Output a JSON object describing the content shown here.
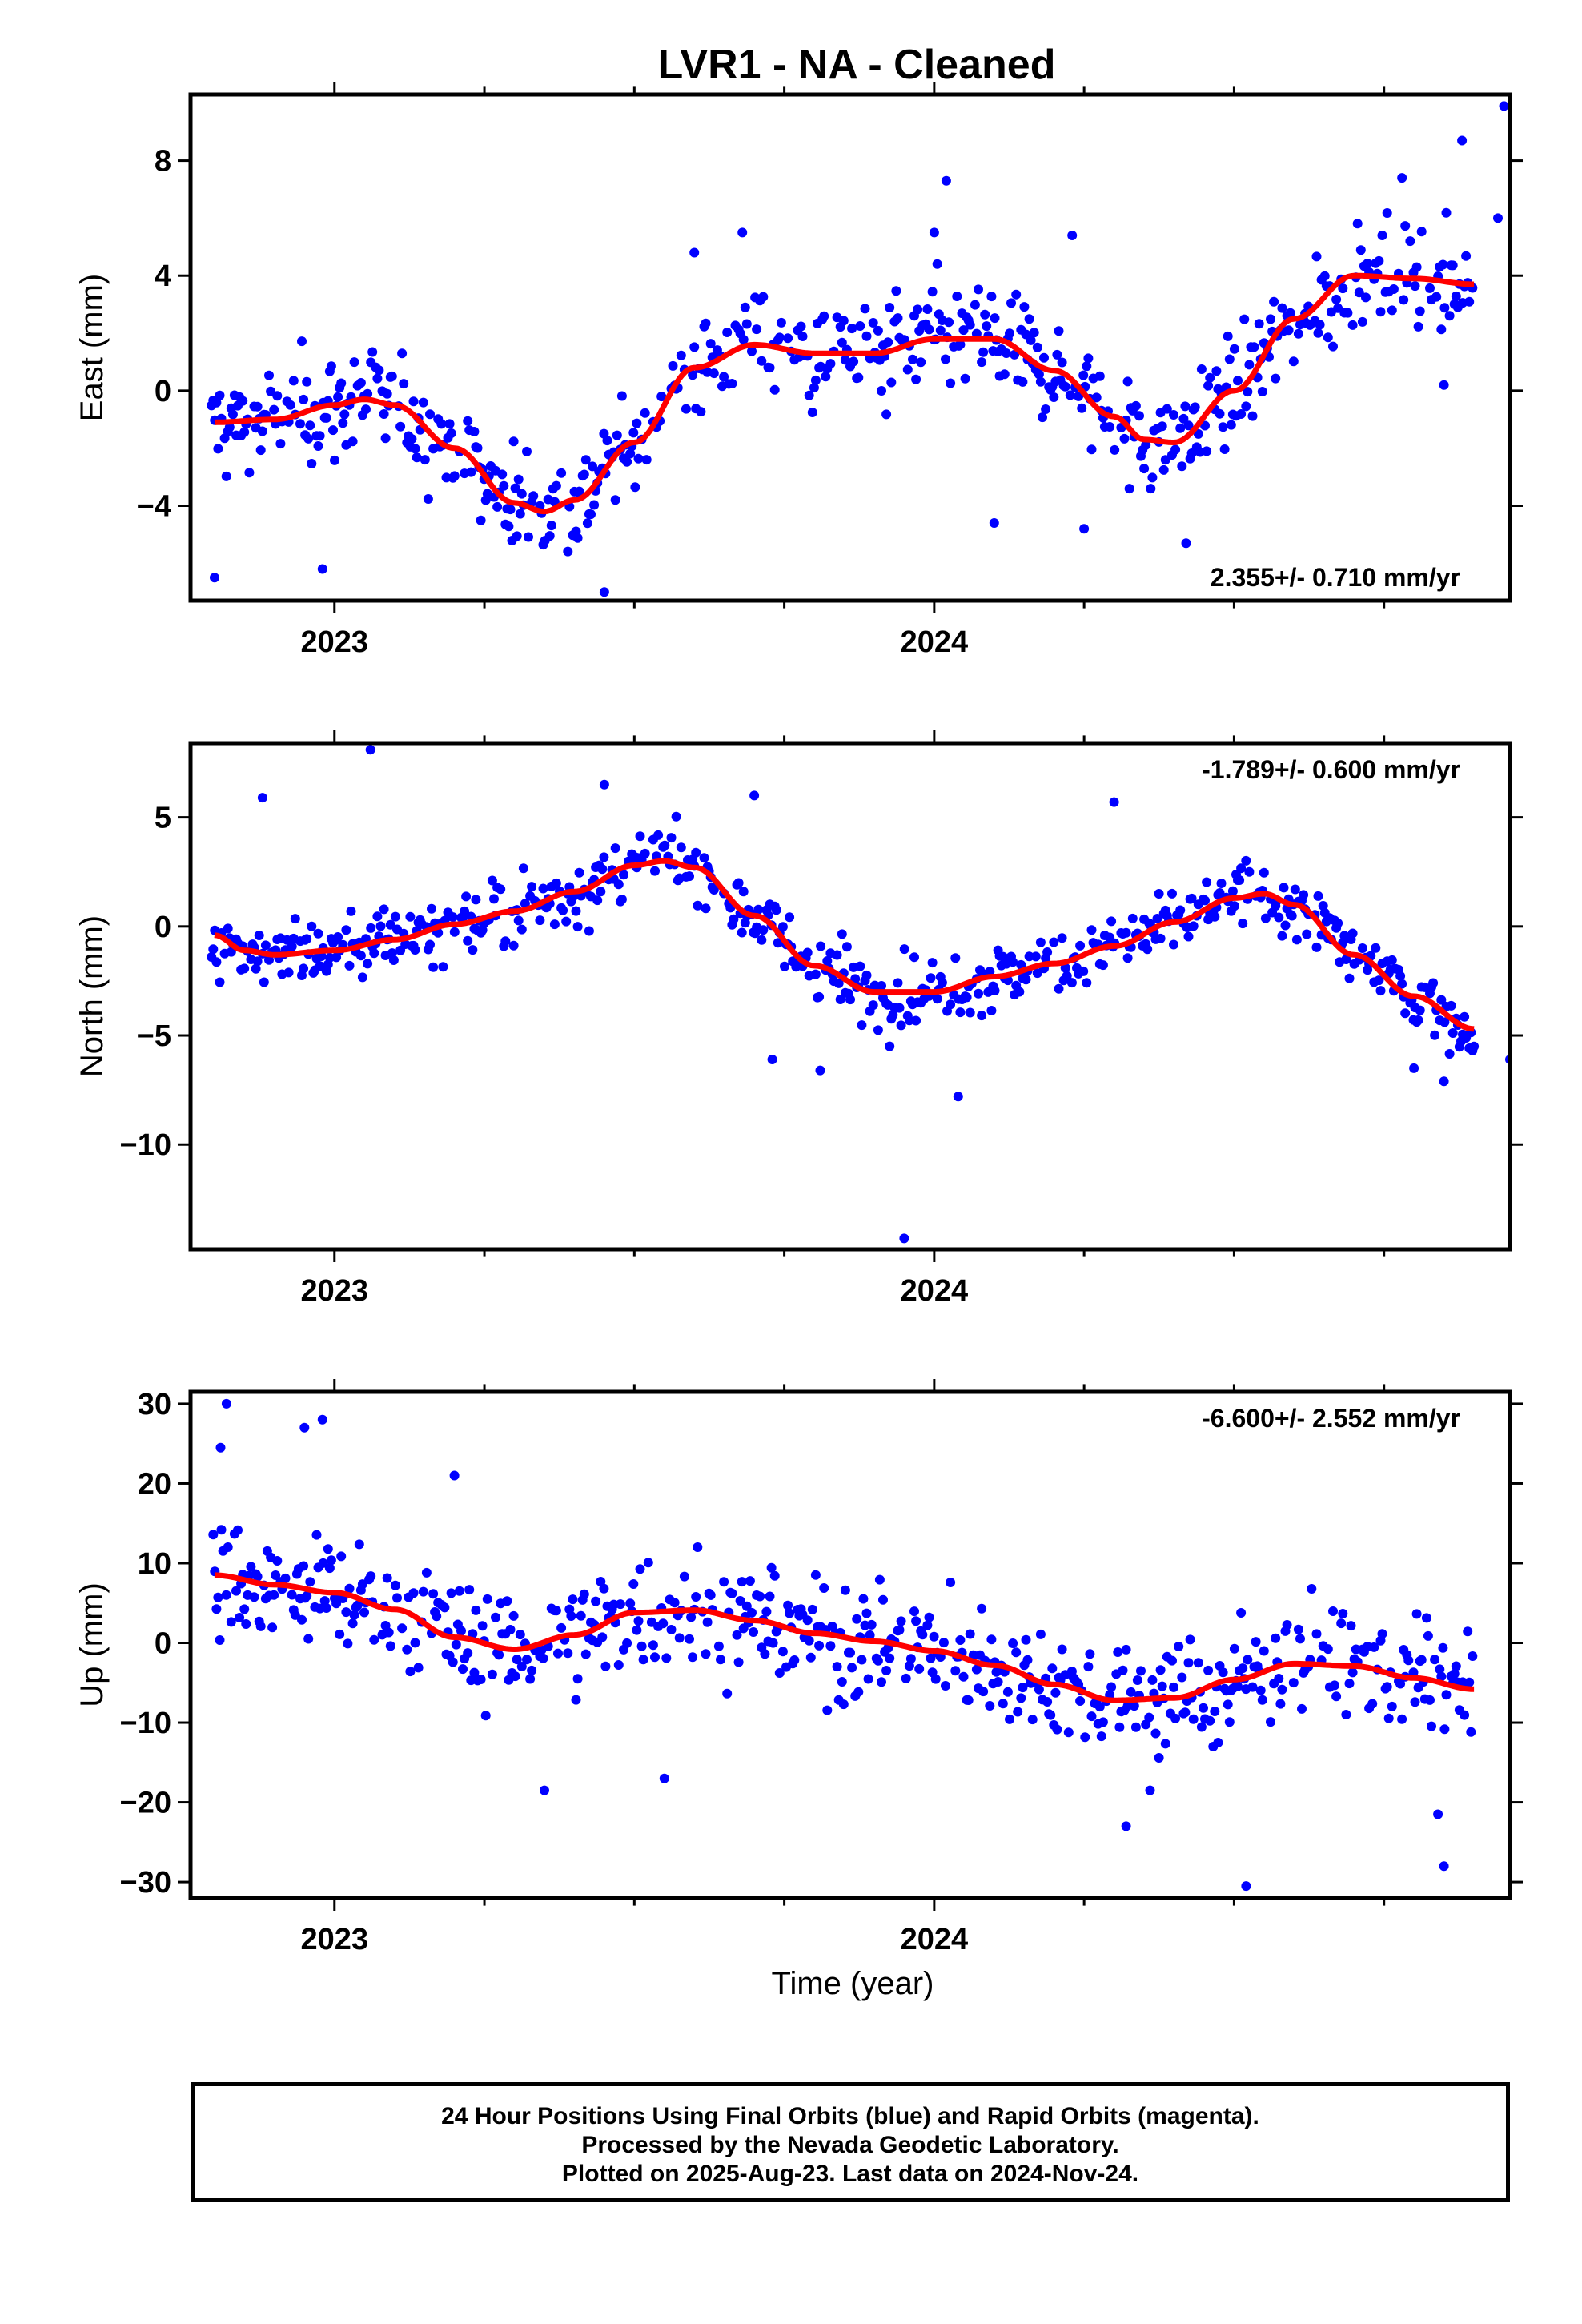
{
  "chart_data": {
    "type": "scatter",
    "title": "LVR1  - NA - Cleaned",
    "xlabel": "Time (year)",
    "xlim": [
      2022.76,
      2024.96
    ],
    "x_ticks": [
      2023,
      2024
    ],
    "x_tick_labels": [
      "2023",
      "2024"
    ],
    "x_minor_tick_step": 0.25,
    "data_point_color": "#0000ff",
    "fit_line_color": "#ff0000",
    "grid": false,
    "panels": [
      {
        "component": "east",
        "ylabel": "East (mm)",
        "ylim": [
          -7.3,
          10.3
        ],
        "y_ticks": [
          -4,
          0,
          4,
          8
        ],
        "y_tick_labels": [
          "−4",
          "0",
          "4",
          "8"
        ],
        "rate_label": "2.355+/- 0.710 mm/yr",
        "rate_label_position": "bottom-right",
        "trend_line": {
          "x": [
            2022.8,
            2022.9,
            2023.0,
            2023.05,
            2023.1,
            2023.2,
            2023.3,
            2023.35,
            2023.4,
            2023.5,
            2023.6,
            2023.7,
            2023.8,
            2023.9,
            2024.0,
            2024.1,
            2024.2,
            2024.3,
            2024.35,
            2024.4,
            2024.5,
            2024.6,
            2024.7,
            2024.8,
            2024.9
          ],
          "y": [
            -1.1,
            -1.0,
            -0.5,
            -0.3,
            -0.5,
            -2.0,
            -3.9,
            -4.2,
            -3.8,
            -1.8,
            0.8,
            1.6,
            1.3,
            1.3,
            1.8,
            1.8,
            0.7,
            -0.9,
            -1.7,
            -1.8,
            0.0,
            2.5,
            4.0,
            3.9,
            3.7
          ]
        },
        "scatter": {
          "type": "residual",
          "series": "final_orbits",
          "amplitude": 1.5,
          "step_days": 1,
          "outliers": [
            {
              "x": 2022.8,
              "y": -6.5
            },
            {
              "x": 2022.98,
              "y": -6.2
            },
            {
              "x": 2023.45,
              "y": -7.0
            },
            {
              "x": 2023.6,
              "y": 4.8
            },
            {
              "x": 2023.68,
              "y": 5.5
            },
            {
              "x": 2024.0,
              "y": 5.5
            },
            {
              "x": 2024.02,
              "y": 7.3
            },
            {
              "x": 2024.1,
              "y": -4.6
            },
            {
              "x": 2024.23,
              "y": 5.4
            },
            {
              "x": 2024.25,
              "y": -4.8
            },
            {
              "x": 2024.42,
              "y": -5.3
            },
            {
              "x": 2024.78,
              "y": 7.4
            },
            {
              "x": 2024.85,
              "y": 0.2
            },
            {
              "x": 2024.88,
              "y": 8.7
            },
            {
              "x": 2024.94,
              "y": 6.0
            },
            {
              "x": 2024.95,
              "y": 9.9
            }
          ]
        }
      },
      {
        "component": "north",
        "ylabel": "North (mm)",
        "ylim": [
          -14.8,
          8.4
        ],
        "y_ticks": [
          -10,
          -5,
          0,
          5
        ],
        "y_tick_labels": [
          "−10",
          "−5",
          "0",
          "5"
        ],
        "rate_label": "-1.789+/- 0.600 mm/yr",
        "rate_label_position": "top-right",
        "trend_line": {
          "x": [
            2022.8,
            2022.85,
            2022.9,
            2023.0,
            2023.1,
            2023.2,
            2023.3,
            2023.4,
            2023.5,
            2023.55,
            2023.6,
            2023.7,
            2023.8,
            2023.9,
            2024.0,
            2024.1,
            2024.2,
            2024.3,
            2024.4,
            2024.5,
            2024.55,
            2024.6,
            2024.7,
            2024.8,
            2024.9
          ],
          "y": [
            -0.4,
            -1.1,
            -1.3,
            -1.1,
            -0.6,
            0.1,
            0.7,
            1.6,
            2.8,
            3.0,
            2.7,
            0.5,
            -1.8,
            -3.0,
            -3.0,
            -2.3,
            -1.7,
            -0.9,
            0.2,
            1.3,
            1.5,
            1.0,
            -1.3,
            -3.2,
            -4.7
          ]
        },
        "scatter": {
          "type": "residual",
          "series": "final_orbits",
          "amplitude": 1.3,
          "step_days": 1,
          "outliers": [
            {
              "x": 2022.88,
              "y": 5.9
            },
            {
              "x": 2023.06,
              "y": 8.1
            },
            {
              "x": 2023.45,
              "y": 6.5
            },
            {
              "x": 2023.7,
              "y": 6.0
            },
            {
              "x": 2023.73,
              "y": -6.1
            },
            {
              "x": 2023.81,
              "y": -6.6
            },
            {
              "x": 2023.95,
              "y": -14.3
            },
            {
              "x": 2024.04,
              "y": -7.8
            },
            {
              "x": 2024.3,
              "y": 5.7
            },
            {
              "x": 2024.8,
              "y": -6.5
            },
            {
              "x": 2024.85,
              "y": -7.1
            },
            {
              "x": 2024.9,
              "y": -5.5
            },
            {
              "x": 2024.96,
              "y": -6.1
            }
          ]
        }
      },
      {
        "component": "up",
        "ylabel": "Up (mm)",
        "ylim": [
          -32,
          31.5
        ],
        "y_ticks": [
          -30,
          -20,
          -10,
          0,
          10,
          20,
          30
        ],
        "y_tick_labels": [
          "−30",
          "−20",
          "−10",
          "0",
          "10",
          "20",
          "30"
        ],
        "rate_label": "-6.600+/- 2.552 mm/yr",
        "rate_label_position": "top-right",
        "trend_line": {
          "x": [
            2022.8,
            2022.9,
            2023.0,
            2023.1,
            2023.2,
            2023.3,
            2023.4,
            2023.5,
            2023.6,
            2023.7,
            2023.8,
            2023.9,
            2024.0,
            2024.1,
            2024.2,
            2024.3,
            2024.4,
            2024.5,
            2024.6,
            2024.7,
            2024.8,
            2024.9
          ],
          "y": [
            8.5,
            7.3,
            6.3,
            4.2,
            0.7,
            -0.8,
            1.0,
            3.8,
            4.1,
            2.8,
            1.2,
            0.2,
            -1.0,
            -2.8,
            -5.2,
            -7.2,
            -6.9,
            -4.6,
            -2.6,
            -2.9,
            -4.4,
            -5.8
          ]
        },
        "scatter": {
          "type": "residual",
          "series": "final_orbits",
          "amplitude": 6,
          "step_days": 1,
          "outliers": [
            {
              "x": 2022.82,
              "y": 30.0
            },
            {
              "x": 2022.81,
              "y": 24.5
            },
            {
              "x": 2022.95,
              "y": 27.0
            },
            {
              "x": 2022.98,
              "y": 28.0
            },
            {
              "x": 2023.2,
              "y": 21.0
            },
            {
              "x": 2023.35,
              "y": -18.5
            },
            {
              "x": 2023.55,
              "y": -17.0
            },
            {
              "x": 2024.32,
              "y": -23.0
            },
            {
              "x": 2024.36,
              "y": -18.5
            },
            {
              "x": 2024.52,
              "y": -30.5
            },
            {
              "x": 2024.84,
              "y": -21.5
            },
            {
              "x": 2024.85,
              "y": -28.0
            }
          ]
        }
      }
    ]
  },
  "footer": {
    "line1": "24 Hour Positions Using Final Orbits (blue) and Rapid Orbits (magenta).",
    "line2": "Processed by the Nevada Geodetic Laboratory.",
    "line3": "Plotted on 2025-Aug-23. Last data on 2024-Nov-24."
  }
}
